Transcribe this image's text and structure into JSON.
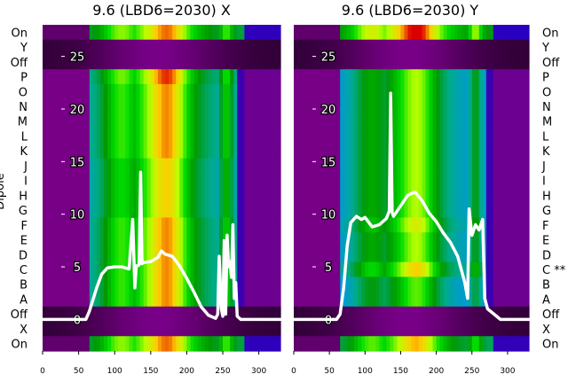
{
  "chart_data": [
    {
      "type": "heatmap",
      "title": "9.6 (LBD6=2030) X",
      "xlabel": "",
      "ylabel": "Dipole",
      "xlim": [
        0,
        330
      ],
      "x_ticks": [
        0,
        50,
        100,
        150,
        200,
        250,
        300
      ],
      "ylim": [
        -3,
        28
      ],
      "y_ticks": [
        0,
        5,
        10,
        15,
        20,
        25
      ],
      "row_labels": [
        "On",
        "Y",
        "Off",
        "P",
        "O",
        "N",
        "M",
        "L",
        "K",
        "J",
        "I",
        "H",
        "G",
        "F",
        "E",
        "D",
        "C",
        "B",
        "A",
        "Off",
        "X",
        "On"
      ],
      "colormap": "nipy_spectral",
      "background_scale": [
        0,
        30
      ],
      "background_rows": [
        {
          "kind": "on",
          "c": 22
        },
        {
          "kind": "off"
        },
        {
          "kind": "off"
        },
        {
          "kind": "beam",
          "c": 18
        },
        {
          "kind": "beam",
          "c": 17
        },
        {
          "kind": "beam",
          "c": 17
        },
        {
          "kind": "beam",
          "c": 17
        },
        {
          "kind": "beam",
          "c": 17
        },
        {
          "kind": "beam",
          "c": 17
        },
        {
          "kind": "beam",
          "c": 16
        },
        {
          "kind": "beam",
          "c": 16
        },
        {
          "kind": "beam",
          "c": 16
        },
        {
          "kind": "beam",
          "c": 16
        },
        {
          "kind": "beam",
          "c": 17
        },
        {
          "kind": "beam",
          "c": 17
        },
        {
          "kind": "beam",
          "c": 17
        },
        {
          "kind": "beam",
          "c": 17
        },
        {
          "kind": "beam",
          "c": 17
        },
        {
          "kind": "beam",
          "c": 17
        },
        {
          "kind": "off"
        },
        {
          "kind": "off"
        },
        {
          "kind": "on",
          "c": 22
        }
      ],
      "series": [
        {
          "x": [
            0,
            60,
            65,
            75,
            82,
            90,
            100,
            110,
            120,
            125,
            128,
            130,
            132,
            134,
            136,
            138,
            140,
            150,
            160,
            165,
            170,
            180,
            190,
            200,
            210,
            220,
            230,
            240,
            243,
            245,
            248,
            250,
            252,
            254,
            256,
            258,
            260,
            262,
            264,
            266,
            268,
            270,
            275,
            290,
            330
          ],
          "y": [
            0,
            0,
            0.8,
            3.0,
            4.3,
            4.9,
            5.0,
            5.0,
            4.8,
            9.5,
            3.0,
            5.1,
            5.1,
            5.2,
            14.0,
            5.3,
            5.4,
            5.5,
            5.9,
            6.5,
            6.2,
            6.0,
            5.1,
            3.9,
            2.6,
            1.2,
            0.4,
            0.1,
            0.5,
            6.0,
            1.0,
            0.3,
            7.5,
            0.5,
            8.0,
            5.0,
            5.5,
            4.0,
            9.0,
            2.0,
            3.5,
            0.3,
            0,
            0,
            0
          ]
        }
      ]
    },
    {
      "type": "heatmap",
      "title": "9.6 (LBD6=2030) Y",
      "xlabel": "",
      "xlim": [
        0,
        330
      ],
      "x_ticks": [
        0,
        50,
        100,
        150,
        200,
        250,
        300
      ],
      "ylim": [
        -3,
        28
      ],
      "y_ticks": [
        0,
        5,
        10,
        15,
        20,
        25
      ],
      "row_labels": [
        "On",
        "Y",
        "Off",
        "P",
        "O",
        "N",
        "M",
        "L",
        "K",
        "J",
        "I",
        "H",
        "G",
        "F",
        "E",
        "D",
        "C **",
        "B",
        "A",
        "Off",
        "X",
        "On"
      ],
      "colormap": "nipy_spectral",
      "background_scale": [
        0,
        30
      ],
      "background_rows": [
        {
          "kind": "on",
          "c": 24
        },
        {
          "kind": "off"
        },
        {
          "kind": "off"
        },
        {
          "kind": "beam",
          "c": 14
        },
        {
          "kind": "beam",
          "c": 14
        },
        {
          "kind": "beam",
          "c": 14
        },
        {
          "kind": "beam",
          "c": 14
        },
        {
          "kind": "beam",
          "c": 14
        },
        {
          "kind": "beam",
          "c": 14
        },
        {
          "kind": "beam",
          "c": 14
        },
        {
          "kind": "beam",
          "c": 14
        },
        {
          "kind": "beam",
          "c": 14
        },
        {
          "kind": "beam",
          "c": 14
        },
        {
          "kind": "beam",
          "c": 15
        },
        {
          "kind": "beam",
          "c": 14
        },
        {
          "kind": "beam",
          "c": 14
        },
        {
          "kind": "beam",
          "c": 16
        },
        {
          "kind": "beam",
          "c": 13
        },
        {
          "kind": "beam",
          "c": 13
        },
        {
          "kind": "off"
        },
        {
          "kind": "off"
        },
        {
          "kind": "on",
          "c": 21
        }
      ],
      "series": [
        {
          "x": [
            0,
            60,
            65,
            70,
            75,
            80,
            88,
            95,
            100,
            110,
            120,
            130,
            134,
            136,
            138,
            140,
            150,
            160,
            170,
            180,
            190,
            200,
            210,
            220,
            230,
            240,
            244,
            246,
            250,
            255,
            260,
            265,
            268,
            272,
            290,
            330
          ],
          "y": [
            0,
            0,
            0.5,
            3.0,
            7.0,
            9.2,
            9.8,
            9.5,
            9.7,
            8.8,
            9.0,
            9.6,
            10.3,
            21.5,
            10.2,
            9.8,
            10.8,
            11.8,
            12.1,
            11.3,
            10.1,
            9.3,
            8.2,
            7.3,
            6.0,
            3.5,
            2.0,
            10.5,
            8.0,
            9.0,
            8.5,
            9.5,
            2.0,
            1.0,
            0,
            0
          ]
        }
      ]
    }
  ]
}
